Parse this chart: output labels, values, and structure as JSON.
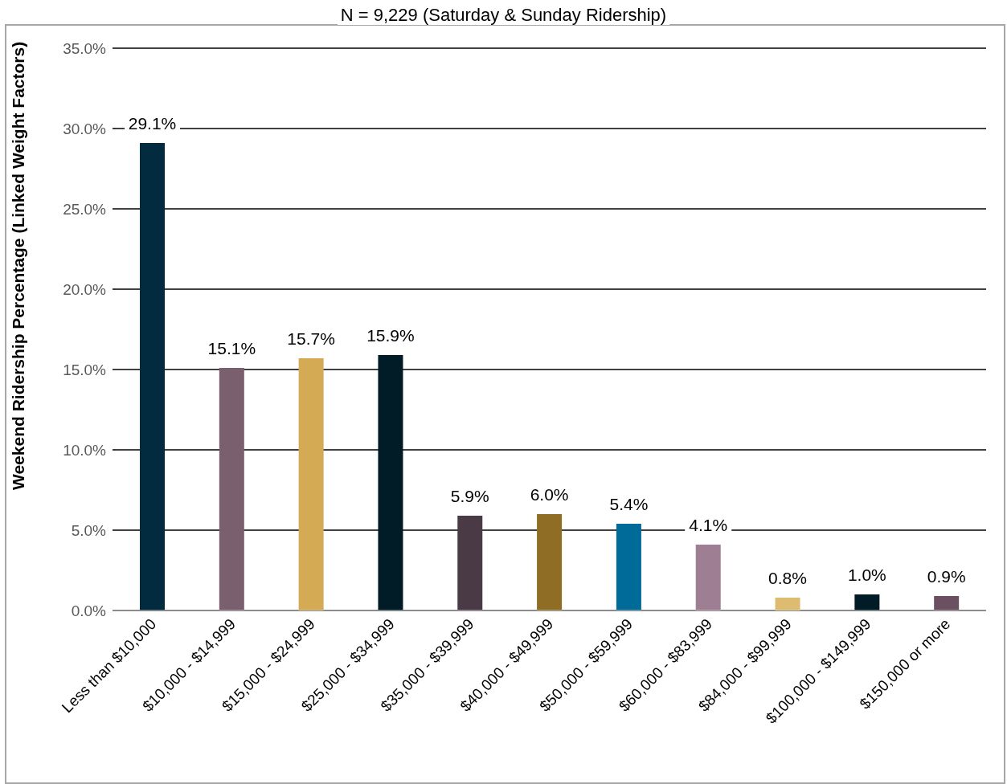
{
  "chart_data": {
    "type": "bar",
    "title": "N = 9,229 (Saturday & Sunday Ridership)",
    "ylabel": "Weekend Ridership Percentage (Linked Weight Factors)",
    "categories": [
      "Less than $10,000",
      "$10,000 - $14,999",
      "$15,000 - $24,999",
      "$25,000 - $34,999",
      "$35,000 - $39,999",
      "$40,000 - $49,999",
      "$50,000 - $59,999",
      "$60,000 - $83,999",
      "$84,000 - $99,999",
      "$100,000 - $149,999",
      "$150,000 or more"
    ],
    "values": [
      29.1,
      15.1,
      15.7,
      15.9,
      5.9,
      6.0,
      5.4,
      4.1,
      0.8,
      1.0,
      0.9
    ],
    "value_labels": [
      "29.1%",
      "15.1%",
      "15.7%",
      "15.9%",
      "5.9%",
      "6.0%",
      "5.4%",
      "4.1%",
      "0.8%",
      "1.0%",
      "0.9%"
    ],
    "colors": [
      "#022b3f",
      "#7a5f6e",
      "#d4aa55",
      "#011c27",
      "#4a3a45",
      "#8f6d25",
      "#006b99",
      "#9e7e93",
      "#ddbb70",
      "#011c27",
      "#6a5060"
    ],
    "ylim": [
      0,
      35
    ],
    "yticks": [
      {
        "value": 0,
        "label": "0.0%"
      },
      {
        "value": 5,
        "label": "5.0%"
      },
      {
        "value": 10,
        "label": "10.0%"
      },
      {
        "value": 15,
        "label": "15.0%"
      },
      {
        "value": 20,
        "label": "20.0%"
      },
      {
        "value": 25,
        "label": "25.0%"
      },
      {
        "value": 30,
        "label": "30.0%"
      },
      {
        "value": 35,
        "label": "35.0%"
      }
    ],
    "grid": "y",
    "legend": false
  }
}
